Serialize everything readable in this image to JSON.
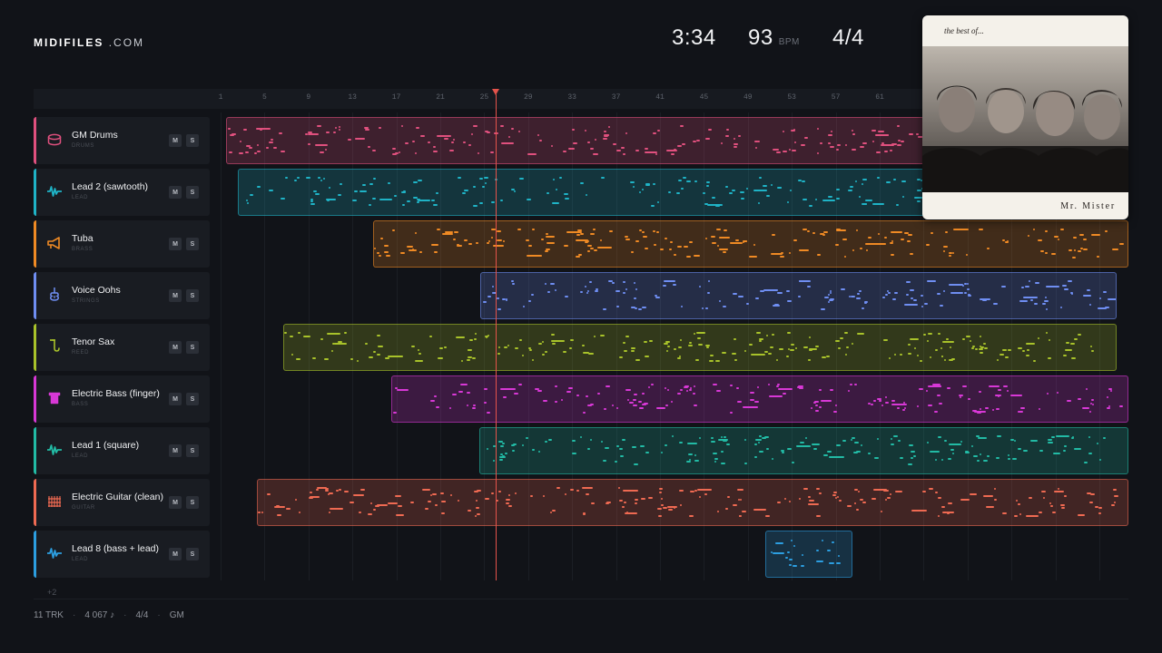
{
  "brand": {
    "name": "MIDIFILES",
    "suffix": ".COM"
  },
  "transport": {
    "time": "3:34",
    "bpm": "93",
    "bpm_unit": "BPM",
    "time_signature": "4/4"
  },
  "ruler": {
    "bars": [
      "1",
      "5",
      "9",
      "13",
      "17",
      "21",
      "25",
      "29",
      "33",
      "37",
      "41",
      "45",
      "49",
      "53",
      "57",
      "61"
    ]
  },
  "playhead_bar": 26,
  "tracks": [
    {
      "name": "GM Drums",
      "category": "DRUMS",
      "color": "#e0507e",
      "icon": "drum-icon",
      "mute": "M",
      "solo": "S"
    },
    {
      "name": "Lead 2 (sawtooth)",
      "category": "LEAD",
      "color": "#1fb3c6",
      "icon": "waveform-icon",
      "mute": "M",
      "solo": "S"
    },
    {
      "name": "Tuba",
      "category": "BRASS",
      "color": "#ef8a24",
      "icon": "horn-icon",
      "mute": "M",
      "solo": "S"
    },
    {
      "name": "Voice Oohs",
      "category": "STRINGS",
      "color": "#6f8ef2",
      "icon": "violin-icon",
      "mute": "M",
      "solo": "S"
    },
    {
      "name": "Tenor Sax",
      "category": "REED",
      "color": "#a8c22a",
      "icon": "sax-icon",
      "mute": "M",
      "solo": "S"
    },
    {
      "name": "Electric Bass (finger)",
      "category": "BASS",
      "color": "#d838d6",
      "icon": "bass-amp-icon",
      "mute": "M",
      "solo": "S"
    },
    {
      "name": "Lead 1 (square)",
      "category": "LEAD",
      "color": "#22bba5",
      "icon": "waveform-icon",
      "mute": "M",
      "solo": "S"
    },
    {
      "name": "Electric Guitar (clean)",
      "category": "GUITAR",
      "color": "#ef6a52",
      "icon": "guitar-icon",
      "mute": "M",
      "solo": "S"
    },
    {
      "name": "Lead 8 (bass + lead)",
      "category": "LEAD",
      "color": "#2c9ee0",
      "icon": "waveform-icon",
      "mute": "M",
      "solo": "S"
    }
  ],
  "more_tracks": "+2",
  "footer": {
    "tracks": "11 TRK",
    "notes": "4 067 ♪",
    "time_signature": "4/4",
    "standard": "GM"
  },
  "album": {
    "top_text": "the best of...",
    "band": "Mr. Mister"
  }
}
